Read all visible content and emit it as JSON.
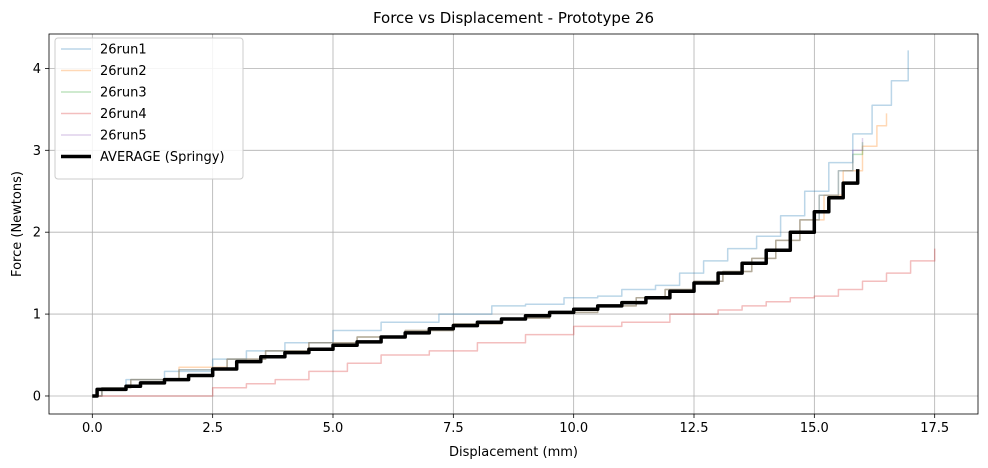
{
  "chart_data": {
    "type": "line",
    "title": "Force vs Displacement - Prototype 26",
    "xlabel": "Displacement (mm)",
    "ylabel": "Force (Newtons)",
    "xlim": [
      -0.9,
      18.4
    ],
    "ylim": [
      -0.22,
      4.42
    ],
    "xticks": [
      0.0,
      2.5,
      5.0,
      7.5,
      10.0,
      12.5,
      15.0,
      17.5
    ],
    "xtick_labels": [
      "0.0",
      "2.5",
      "5.0",
      "7.5",
      "10.0",
      "12.5",
      "15.0",
      "17.5"
    ],
    "yticks": [
      0,
      1,
      2,
      3,
      4
    ],
    "ytick_labels": [
      "0",
      "1",
      "2",
      "3",
      "4"
    ],
    "grid": true,
    "legend_position": "top-left",
    "series": [
      {
        "name": "26run1",
        "color": "#1f77b4",
        "opacity": 0.3,
        "width": 1.5,
        "x": [
          0.0,
          0.2,
          0.7,
          1.5,
          2.5,
          3.2,
          4.0,
          5.0,
          6.0,
          7.2,
          8.3,
          9.0,
          9.8,
          10.5,
          11.0,
          11.7,
          12.2,
          12.7,
          13.2,
          13.8,
          14.3,
          14.8,
          15.3,
          15.8,
          16.2,
          16.6,
          16.95
        ],
        "y": [
          0.0,
          0.1,
          0.2,
          0.3,
          0.45,
          0.55,
          0.65,
          0.8,
          0.9,
          1.0,
          1.1,
          1.12,
          1.2,
          1.22,
          1.3,
          1.35,
          1.5,
          1.65,
          1.8,
          1.95,
          2.2,
          2.5,
          2.85,
          3.2,
          3.55,
          3.85,
          4.22
        ]
      },
      {
        "name": "26run2",
        "color": "#ff7f0e",
        "opacity": 0.3,
        "width": 1.5,
        "x": [
          0.0,
          0.2,
          0.8,
          1.8,
          2.8,
          3.6,
          4.5,
          5.5,
          6.5,
          7.5,
          8.5,
          9.5,
          10.5,
          11.3,
          11.9,
          12.5,
          13.1,
          13.7,
          14.2,
          14.7,
          15.2,
          15.6,
          16.0,
          16.3,
          16.5
        ],
        "y": [
          0.0,
          0.1,
          0.2,
          0.35,
          0.45,
          0.55,
          0.65,
          0.72,
          0.8,
          0.88,
          0.95,
          1.02,
          1.1,
          1.2,
          1.3,
          1.4,
          1.52,
          1.68,
          1.9,
          2.15,
          2.45,
          2.75,
          3.05,
          3.3,
          3.45
        ]
      },
      {
        "name": "26run3",
        "color": "#2ca02c",
        "opacity": 0.3,
        "width": 1.5,
        "x": [
          0.0,
          0.2,
          0.8,
          1.8,
          2.8,
          3.6,
          4.5,
          5.5,
          6.5,
          7.5,
          8.5,
          9.5,
          10.5,
          11.3,
          11.9,
          12.5,
          13.1,
          13.7,
          14.2,
          14.7,
          15.1,
          15.5,
          15.8,
          16.0
        ],
        "y": [
          0.0,
          0.1,
          0.2,
          0.32,
          0.45,
          0.55,
          0.65,
          0.72,
          0.8,
          0.88,
          0.95,
          1.02,
          1.1,
          1.2,
          1.3,
          1.4,
          1.52,
          1.68,
          1.9,
          2.15,
          2.45,
          2.75,
          2.95,
          3.1
        ]
      },
      {
        "name": "26run4",
        "color": "#d62728",
        "opacity": 0.3,
        "width": 1.5,
        "x": [
          0.0,
          2.5,
          3.2,
          3.8,
          4.5,
          5.3,
          6.0,
          7.0,
          8.0,
          9.0,
          10.0,
          11.0,
          12.0,
          13.0,
          13.5,
          14.0,
          14.5,
          15.0,
          15.5,
          16.0,
          16.5,
          17.0,
          17.5
        ],
        "y": [
          0.0,
          0.1,
          0.15,
          0.2,
          0.3,
          0.4,
          0.5,
          0.55,
          0.65,
          0.75,
          0.85,
          0.9,
          1.0,
          1.05,
          1.1,
          1.15,
          1.2,
          1.22,
          1.3,
          1.4,
          1.5,
          1.65,
          1.8
        ]
      },
      {
        "name": "26run5",
        "color": "#9467bd",
        "opacity": 0.3,
        "width": 1.5,
        "x": [
          0.0,
          0.2,
          0.8,
          1.8,
          2.8,
          3.6,
          4.5,
          5.5,
          6.5,
          7.5,
          8.5,
          9.5,
          10.5,
          11.3,
          11.9,
          12.5,
          13.1,
          13.7,
          14.2,
          14.7,
          15.1,
          15.5,
          15.8,
          16.0
        ],
        "y": [
          0.0,
          0.1,
          0.2,
          0.32,
          0.45,
          0.55,
          0.65,
          0.72,
          0.8,
          0.88,
          0.95,
          1.02,
          1.1,
          1.2,
          1.3,
          1.4,
          1.52,
          1.68,
          1.9,
          2.15,
          2.45,
          2.75,
          3.0,
          3.15
        ]
      },
      {
        "name": "AVERAGE (Springy)",
        "color": "#000000",
        "opacity": 1.0,
        "width": 3.5,
        "x": [
          0.0,
          0.1,
          0.7,
          1.0,
          1.5,
          2.0,
          2.5,
          3.0,
          3.5,
          4.0,
          4.5,
          5.0,
          5.5,
          6.0,
          6.5,
          7.0,
          7.5,
          8.0,
          8.5,
          9.0,
          9.5,
          10.0,
          10.5,
          11.0,
          11.5,
          12.0,
          12.5,
          13.0,
          13.5,
          14.0,
          14.5,
          15.0,
          15.3,
          15.6,
          15.9
        ],
        "y": [
          0.0,
          0.08,
          0.12,
          0.16,
          0.2,
          0.25,
          0.33,
          0.42,
          0.48,
          0.53,
          0.57,
          0.62,
          0.66,
          0.72,
          0.77,
          0.82,
          0.86,
          0.9,
          0.94,
          0.98,
          1.02,
          1.06,
          1.1,
          1.14,
          1.2,
          1.28,
          1.38,
          1.5,
          1.62,
          1.78,
          2.0,
          2.25,
          2.42,
          2.6,
          2.77
        ]
      }
    ]
  }
}
